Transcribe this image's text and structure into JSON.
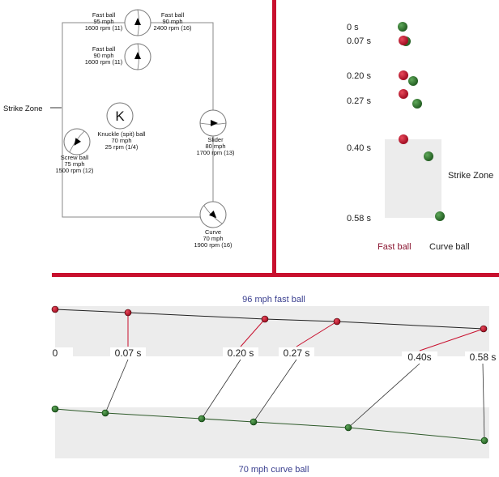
{
  "pitch_diagram": {
    "strike_zone_label": "Strike Zone",
    "knuckle_symbol": "K",
    "pitches": [
      {
        "id": "fastball-95",
        "lines": [
          "Fast ball",
          "95 mph",
          "1600 rpm (11)"
        ]
      },
      {
        "id": "fastball-90-2400",
        "lines": [
          "Fast ball",
          "90 mph",
          "2400 rpm (16)"
        ]
      },
      {
        "id": "fastball-90-1600",
        "lines": [
          "Fast ball",
          "90 mph",
          "1600 rpm (11)"
        ]
      },
      {
        "id": "knuckle",
        "lines": [
          "Knuckle (spit)  ball",
          "70 mph",
          "25 rpm (1/4)"
        ]
      },
      {
        "id": "screwball",
        "lines": [
          "Screw ball",
          "75 mph",
          "1500 rpm (12)"
        ]
      },
      {
        "id": "slider",
        "lines": [
          "Slider",
          "80 mph",
          "1700 rpm (13)"
        ]
      },
      {
        "id": "curve",
        "lines": [
          "Curve",
          "70 mph",
          "1900 rpm (16)"
        ]
      }
    ]
  },
  "front_view": {
    "times": [
      "0 s",
      "0.07 s",
      "0.20 s",
      "0.27 s",
      "0.40 s",
      "0.58 s"
    ],
    "strike_zone_label": "Strike Zone",
    "fast_ball_label": "Fast ball",
    "curve_ball_label": "Curve ball"
  },
  "side_view": {
    "fast_title": "96 mph fast ball",
    "curve_title": "70 mph curve ball",
    "times": [
      "0",
      "0.07 s",
      "0.20 s",
      "0.27 s",
      "0.40s",
      "0.58 s"
    ]
  },
  "colors": {
    "divider": "#c8102e",
    "fast": "#b0102a",
    "curve": "#2e7a2a",
    "title": "#3a3f8f",
    "band": "#ececec"
  }
}
